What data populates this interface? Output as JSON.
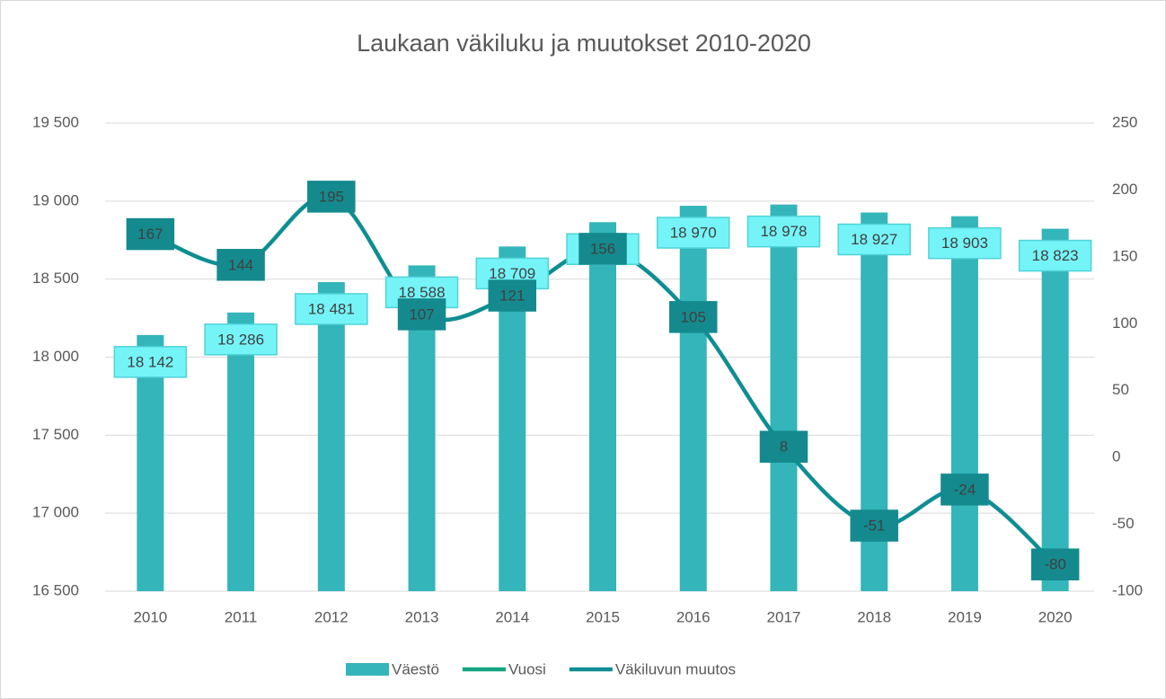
{
  "chart_data": {
    "type": "bar-line",
    "title": "Laukaan väkiluku ja muutokset 2010-2020",
    "categories": [
      "2010",
      "2011",
      "2012",
      "2013",
      "2014",
      "2015",
      "2016",
      "2017",
      "2018",
      "2019",
      "2020"
    ],
    "series": [
      {
        "name": "Väestö",
        "type": "bar",
        "color": "#33b5b9",
        "values": [
          18142,
          18286,
          18481,
          18588,
          18709,
          18865,
          18970,
          18978,
          18927,
          18903,
          18823
        ],
        "value_labels": [
          "18 142",
          "18 286",
          "18 481",
          "18 588",
          "18 709",
          "18 865",
          "18 970",
          "18 978",
          "18 927",
          "18 903",
          "18 823"
        ]
      },
      {
        "name": "Vuosi",
        "type": "line",
        "color": "#14a37f",
        "values": [
          null,
          null,
          null,
          null,
          null,
          null,
          null,
          null,
          null,
          null,
          null
        ]
      },
      {
        "name": "Väkiluvun muutos",
        "type": "line",
        "axis": "y2",
        "color": "#0e8e92",
        "values": [
          167,
          144,
          195,
          107,
          121,
          156,
          105,
          8,
          -51,
          -24,
          -80
        ]
      }
    ],
    "ylim": [
      16500,
      19500
    ],
    "yticks": [
      {
        "value": 16500,
        "label": "16 500"
      },
      {
        "value": 17000,
        "label": "17 000"
      },
      {
        "value": 17500,
        "label": "17 500"
      },
      {
        "value": 18000,
        "label": "18 000"
      },
      {
        "value": 18500,
        "label": "18 500"
      },
      {
        "value": 19000,
        "label": "19 000"
      },
      {
        "value": 19500,
        "label": "19 500"
      }
    ],
    "y2lim": [
      -100,
      250
    ],
    "y2ticks": [
      -100,
      -50,
      0,
      50,
      100,
      150,
      200,
      250
    ],
    "grid": true,
    "legend": "bottom"
  }
}
